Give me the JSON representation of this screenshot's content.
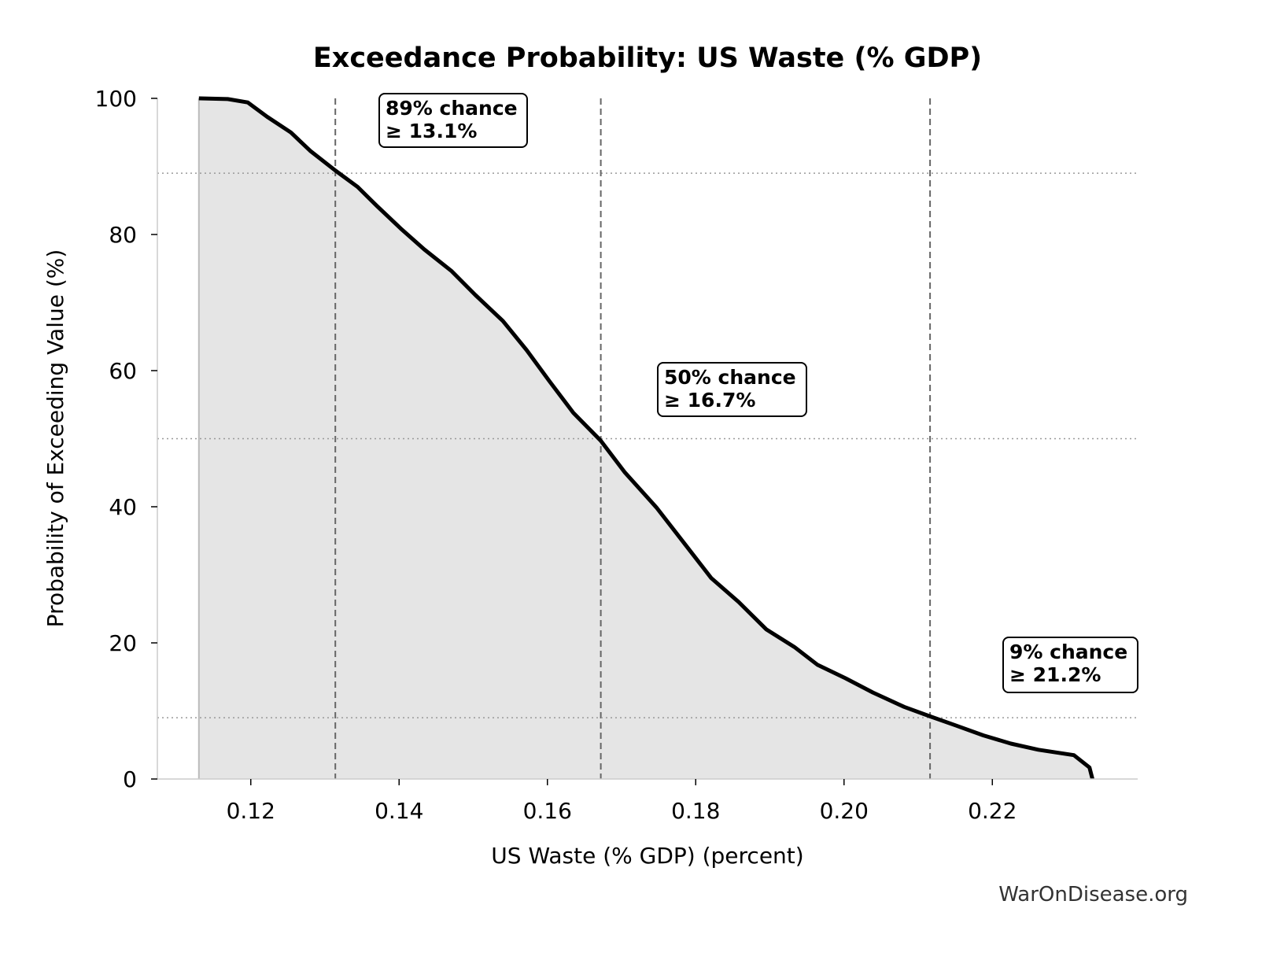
{
  "chart_data": {
    "type": "area",
    "title": "Exceedance Probability: US Waste (% GDP)",
    "xlabel": "US Waste (% GDP) (percent)",
    "ylabel": "Probability of Exceeding Value (%)",
    "xlim": [
      0.1074,
      0.2396
    ],
    "ylim": [
      0,
      100
    ],
    "xticks": [
      0.12,
      0.14,
      0.16,
      0.18,
      0.2,
      0.22
    ],
    "xtick_labels": [
      "0.12",
      "0.14",
      "0.16",
      "0.18",
      "0.20",
      "0.22"
    ],
    "yticks": [
      0,
      20,
      40,
      60,
      80,
      100
    ],
    "ytick_labels": [
      "0",
      "20",
      "40",
      "60",
      "80",
      "100"
    ],
    "grid": false,
    "series": [
      {
        "x": [
          0.113,
          0.1169,
          0.1196,
          0.1222,
          0.1254,
          0.128,
          0.1314,
          0.1344,
          0.137,
          0.1402,
          0.1434,
          0.1471,
          0.1503,
          0.154,
          0.1572,
          0.1603,
          0.1635,
          0.1672,
          0.1704,
          0.1747,
          0.1784,
          0.1821,
          0.1858,
          0.1895,
          0.1933,
          0.1964,
          0.2002,
          0.2039,
          0.2081,
          0.2116,
          0.215,
          0.2188,
          0.2225,
          0.2262,
          0.231,
          0.2331,
          0.2335
        ],
        "y": [
          100,
          99.9,
          99.4,
          97.3,
          95,
          92.3,
          89.4,
          87,
          84.2,
          80.9,
          77.8,
          74.6,
          71.1,
          67.3,
          63,
          58.4,
          53.8,
          49.7,
          45.1,
          39.9,
          34.7,
          29.5,
          26,
          22,
          19.4,
          16.8,
          14.8,
          12.7,
          10.6,
          9.2,
          7.9,
          6.4,
          5.2,
          4.3,
          3.5,
          1.7,
          0
        ],
        "color": "#000000",
        "fill": "#e5e5e5"
      }
    ],
    "reference_lines": [
      {
        "probability": 89,
        "value": 0.1314
      },
      {
        "probability": 50,
        "value": 0.1672
      },
      {
        "probability": 9,
        "value": 0.2116
      }
    ],
    "annotations": [
      {
        "line1": "89% chance",
        "line2": "≥ 13.1%"
      },
      {
        "line1": "50% chance",
        "line2": "≥ 16.7%"
      },
      {
        "line1": "9% chance",
        "line2": "≥ 21.2%"
      }
    ],
    "watermark": "WarOnDisease.org"
  }
}
